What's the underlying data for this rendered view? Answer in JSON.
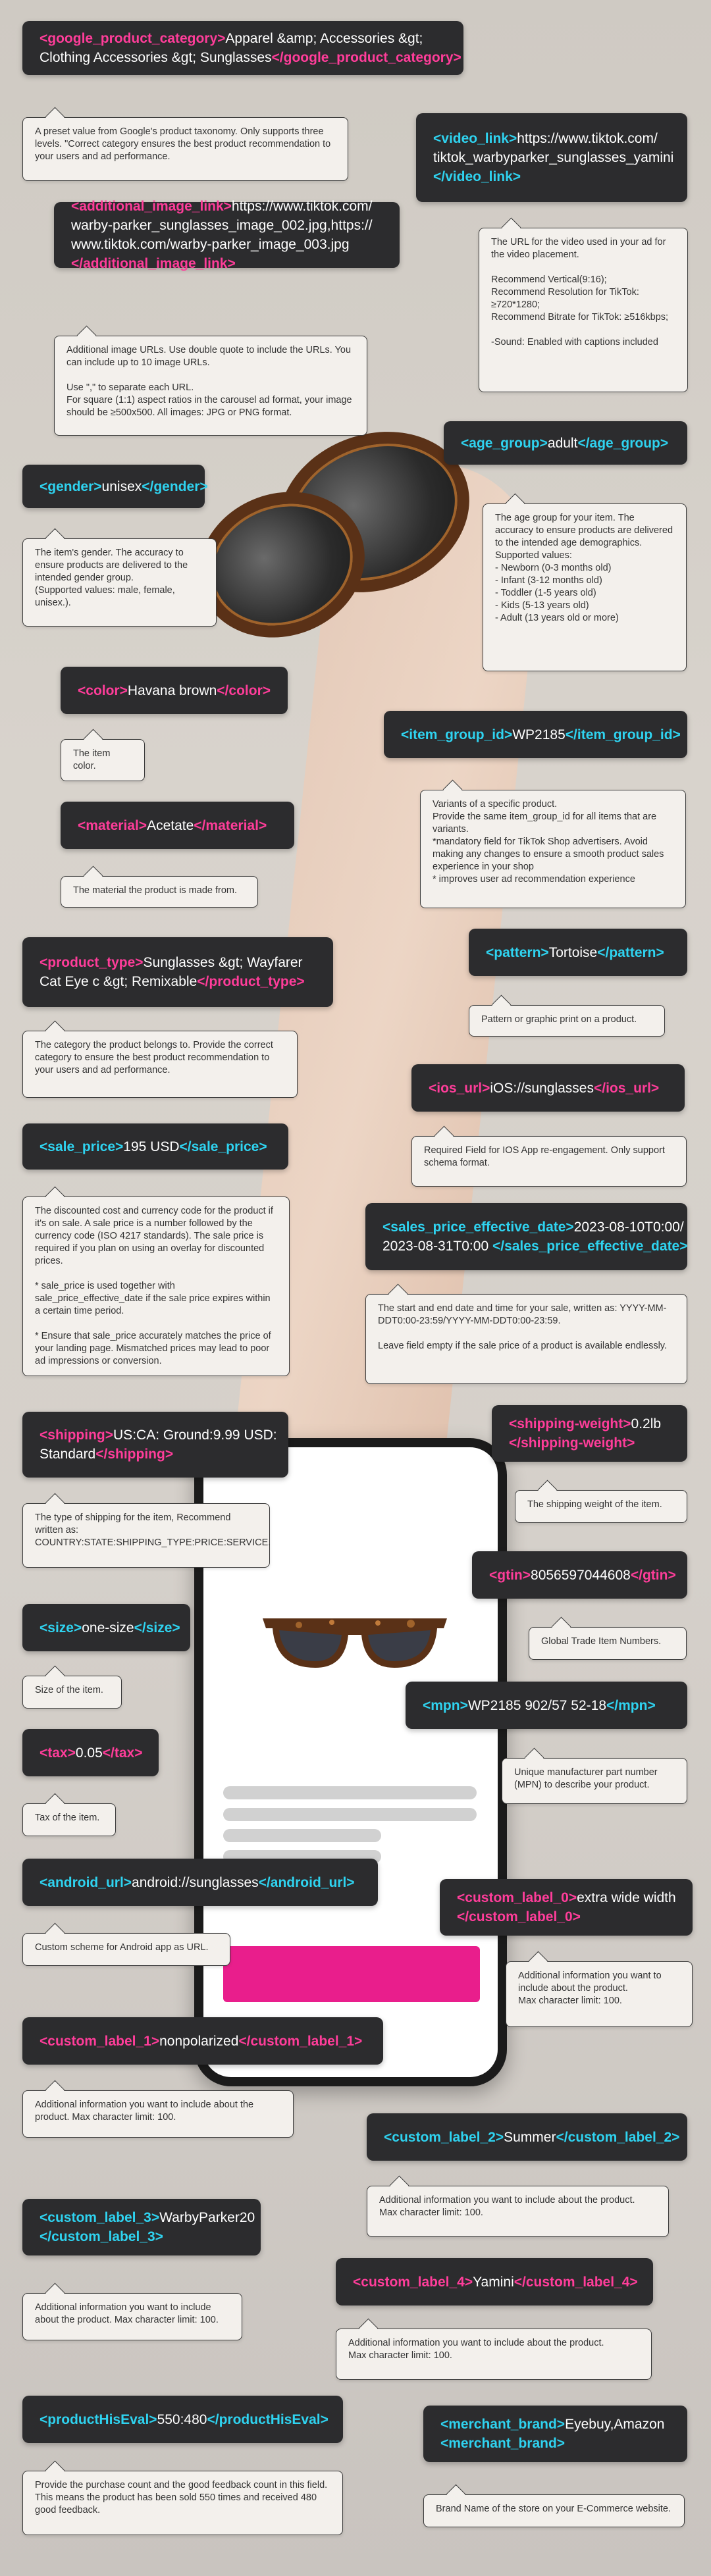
{
  "fields": [
    {
      "id": "google_product_category",
      "color": "pink",
      "lines": [
        [
          {
            "t": "<google_product_category>",
            "c": "pink"
          },
          {
            "t": "Apparel &amp; Accessories &gt;"
          }
        ],
        [
          {
            "t": "Clothing Accessories &gt; Sunglasses"
          },
          {
            "t": "</google_product_category>",
            "c": "pink"
          }
        ]
      ],
      "desc": "A preset value from Google's product taxonomy. Only supports three levels. \"Correct category ensures the best product recommendation to your users and ad performance."
    },
    {
      "id": "video_link",
      "lines": [
        [
          {
            "t": "<video_link>",
            "c": "cyan"
          },
          {
            "t": "https://www.tiktok.com/"
          }
        ],
        [
          {
            "t": "tiktok_warbyparker_sunglasses_yamini"
          }
        ],
        [
          {
            "t": "</video_link>",
            "c": "cyan"
          }
        ]
      ],
      "desc": "The URL for the video used in your ad for the video placement.\n\nRecommend Vertical(9:16);\nRecommend Resolution for TikTok: ≥720*1280;\nRecommend Bitrate for TikTok: ≥516kbps;\n\n-Sound: Enabled with captions included"
    },
    {
      "id": "additional_image_link",
      "lines": [
        [
          {
            "t": "<additional_image_link>",
            "c": "pink"
          },
          {
            "t": "https://www.tiktok.com/"
          }
        ],
        [
          {
            "t": "warby-parker_sunglasses_image_002.jpg,https://"
          }
        ],
        [
          {
            "t": "www.tiktok.com/warby-parker_image_003.jpg"
          }
        ],
        [
          {
            "t": "</additional_image_link>",
            "c": "pink"
          }
        ]
      ],
      "desc": "Additional image URLs. Use double quote to include the URLs. You can include up to 10 image URLs.\n\nUse \",\" to separate each URL.\nFor square (1:1) aspect ratios in the carousel ad format, your image should be ≥500x500. All images: JPG or PNG format."
    },
    {
      "id": "age_group",
      "lines": [
        [
          {
            "t": "<age_group>",
            "c": "cyan"
          },
          {
            "t": "adult"
          },
          {
            "t": "</age_group>",
            "c": "cyan"
          }
        ]
      ],
      "desc": "The age group for your item. The accuracy to ensure products are delivered to the intended age demographics.\nSupported values:\n- Newborn (0-3 months old)\n- Infant (3-12 months old)\n- Toddler (1-5 years old)\n- Kids (5-13 years old)\n- Adult (13 years old or more)"
    },
    {
      "id": "gender",
      "lines": [
        [
          {
            "t": "<gender>",
            "c": "cyan"
          },
          {
            "t": "unisex"
          },
          {
            "t": "</gender>",
            "c": "cyan"
          }
        ]
      ],
      "desc": "The item's gender. The accuracy to ensure products are delivered to the intended gender group.\n(Supported values: male, female, unisex.)."
    },
    {
      "id": "color",
      "lines": [
        [
          {
            "t": "<color>",
            "c": "pink"
          },
          {
            "t": "Havana brown"
          },
          {
            "t": "</color>",
            "c": "pink"
          }
        ]
      ],
      "desc": "The item color."
    },
    {
      "id": "item_group_id",
      "lines": [
        [
          {
            "t": "<item_group_id>",
            "c": "cyan"
          },
          {
            "t": "WP2185"
          },
          {
            "t": "</item_group_id>",
            "c": "cyan"
          }
        ]
      ],
      "desc": "Variants of a specific product.\nProvide the same item_group_id for all items that are variants.\n*mandatory field for TikTok Shop advertisers. Avoid making any changes to ensure a smooth product sales experience in your shop\n* improves user ad recommendation experience"
    },
    {
      "id": "material",
      "lines": [
        [
          {
            "t": "<material>",
            "c": "pink"
          },
          {
            "t": "Acetate"
          },
          {
            "t": "</material>",
            "c": "pink"
          }
        ]
      ],
      "desc": "The material the product is made from."
    },
    {
      "id": "product_type",
      "lines": [
        [
          {
            "t": "<product_type>",
            "c": "pink"
          },
          {
            "t": "Sunglasses &gt; Wayfarer"
          }
        ],
        [
          {
            "t": "Cat Eye c &gt; Remixable"
          },
          {
            "t": "</product_type>",
            "c": "pink"
          }
        ]
      ],
      "desc": "The category the product belongs to. Provide the correct category to ensure the best product recommendation to your users and ad performance."
    },
    {
      "id": "pattern",
      "lines": [
        [
          {
            "t": "<pattern>",
            "c": "cyan"
          },
          {
            "t": "Tortoise"
          },
          {
            "t": "</pattern>",
            "c": "cyan"
          }
        ]
      ],
      "desc": "Pattern or graphic print on a product."
    },
    {
      "id": "ios_url",
      "lines": [
        [
          {
            "t": "<ios_url>",
            "c": "pink"
          },
          {
            "t": "iOS://sunglasses"
          },
          {
            "t": "</ios_url>",
            "c": "pink"
          }
        ]
      ],
      "desc": "Required Field for IOS App re-engagement. Only support schema format."
    },
    {
      "id": "sale_price",
      "lines": [
        [
          {
            "t": "<sale_price>",
            "c": "cyan"
          },
          {
            "t": "195 USD"
          },
          {
            "t": "</sale_price>",
            "c": "cyan"
          }
        ]
      ],
      "desc": "The discounted cost and currency code for the product if it's on sale. A sale price is a number followed by the currency code (ISO 4217 standards). The sale price is required if you plan on using an overlay for discounted prices.\n\n* sale_price is used together with sale_price_effective_date if the sale price expires within a certain time period.\n\n* Ensure that sale_price accurately matches the price of your landing page. Mismatched prices may lead to poor ad impressions or conversion."
    },
    {
      "id": "sales_price_effective_date",
      "lines": [
        [
          {
            "t": "<sales_price_effective_date>",
            "c": "cyan"
          },
          {
            "t": "2023-08-10T0:00/"
          }
        ],
        [
          {
            "t": "2023-08-31T0:00 "
          },
          {
            "t": "</sales_price_effective_date>",
            "c": "cyan"
          }
        ]
      ],
      "desc": "The start and end date and time for your sale, written as: YYYY-MM-DDT0:00-23:59/YYYY-MM-DDT0:00-23:59.\n\nLeave field empty if the sale price of a product is available endlessly."
    },
    {
      "id": "shipping",
      "lines": [
        [
          {
            "t": "<shipping>",
            "c": "pink"
          },
          {
            "t": "US:CA: Ground:9.99 USD:"
          }
        ],
        [
          {
            "t": "Standard"
          },
          {
            "t": "</shipping>",
            "c": "pink"
          }
        ]
      ],
      "desc": "The type of shipping for the item, Recommend written as:\nCOUNTRY:STATE:SHIPPING_TYPE:PRICE:SERVICE."
    },
    {
      "id": "shipping_weight",
      "lines": [
        [
          {
            "t": "<shipping-weight>",
            "c": "pink"
          },
          {
            "t": "0.2lb"
          }
        ],
        [
          {
            "t": "</shipping-weight>",
            "c": "pink"
          }
        ]
      ],
      "desc": "The shipping weight of the item."
    },
    {
      "id": "gtin",
      "lines": [
        [
          {
            "t": "<gtin>",
            "c": "pink"
          },
          {
            "t": "8056597044608"
          },
          {
            "t": "</gtin>",
            "c": "pink"
          }
        ]
      ],
      "desc": "Global Trade Item Numbers."
    },
    {
      "id": "size",
      "lines": [
        [
          {
            "t": "<size>",
            "c": "cyan"
          },
          {
            "t": "one-size"
          },
          {
            "t": "</size>",
            "c": "cyan"
          }
        ]
      ],
      "desc": "Size of the item."
    },
    {
      "id": "mpn",
      "lines": [
        [
          {
            "t": "<mpn>",
            "c": "cyan"
          },
          {
            "t": "WP2185 902/57 52-18"
          },
          {
            "t": "</mpn>",
            "c": "cyan"
          }
        ]
      ],
      "desc": "Unique manufacturer part number (MPN) to describe your product."
    },
    {
      "id": "tax",
      "lines": [
        [
          {
            "t": "<tax>",
            "c": "pink"
          },
          {
            "t": "0.05"
          },
          {
            "t": "</tax>",
            "c": "pink"
          }
        ]
      ],
      "desc": "Tax of the item."
    },
    {
      "id": "android_url",
      "lines": [
        [
          {
            "t": "<android_url>",
            "c": "cyan"
          },
          {
            "t": "android://sunglasses"
          },
          {
            "t": "</android_url>",
            "c": "cyan"
          }
        ]
      ],
      "desc": "Custom scheme for Android app as URL."
    },
    {
      "id": "custom_label_0",
      "lines": [
        [
          {
            "t": "<custom_label_0>",
            "c": "pink"
          },
          {
            "t": "extra wide width"
          }
        ],
        [
          {
            "t": "</custom_label_0>",
            "c": "pink"
          }
        ]
      ],
      "desc": "Additional information you want to include about the product.\nMax character limit: 100."
    },
    {
      "id": "custom_label_1",
      "lines": [
        [
          {
            "t": "<custom_label_1>",
            "c": "pink"
          },
          {
            "t": "nonpolarized"
          },
          {
            "t": "</custom_label_1>",
            "c": "pink"
          }
        ]
      ],
      "desc": "Additional information you want to include about the product. Max character limit: 100."
    },
    {
      "id": "custom_label_2",
      "lines": [
        [
          {
            "t": "<custom_label_2>",
            "c": "cyan"
          },
          {
            "t": "Summer"
          },
          {
            "t": "</custom_label_2>",
            "c": "cyan"
          }
        ]
      ],
      "desc": "Additional information you want to include about the product.\nMax character limit: 100."
    },
    {
      "id": "custom_label_3",
      "lines": [
        [
          {
            "t": "<custom_label_3>",
            "c": "cyan"
          },
          {
            "t": "WarbyParker20"
          }
        ],
        [
          {
            "t": "</custom_label_3>",
            "c": "cyan"
          }
        ]
      ],
      "desc": "Additional information you want to include about the product. Max character limit: 100."
    },
    {
      "id": "custom_label_4",
      "lines": [
        [
          {
            "t": "<custom_label_4>",
            "c": "pink"
          },
          {
            "t": "Yamini"
          },
          {
            "t": "</custom_label_4>",
            "c": "pink"
          }
        ]
      ],
      "desc": "Additional information you want to include about the product.\nMax character limit: 100."
    },
    {
      "id": "productHisEval",
      "lines": [
        [
          {
            "t": "<productHisEval>",
            "c": "cyan"
          },
          {
            "t": "550:480"
          },
          {
            "t": "</productHisEval>",
            "c": "cyan"
          }
        ]
      ],
      "desc": "Provide the purchase count and the good feedback count in this field. This means the product has been sold 550 times and received 480 good feedback."
    },
    {
      "id": "merchant_brand",
      "lines": [
        [
          {
            "t": "<merchant_brand>",
            "c": "cyan"
          },
          {
            "t": "Eyebuy,Amazon"
          }
        ],
        [
          {
            "t": "<merchant_brand>",
            "c": "cyan"
          }
        ]
      ],
      "desc": "Brand Name of the store on your E-Commerce website."
    }
  ],
  "colors": {
    "pink": "#ff3d9a",
    "cyan": "#2fd3f0",
    "tag_bg": "#2c2c2e",
    "accent_button": "#e91e8c"
  }
}
